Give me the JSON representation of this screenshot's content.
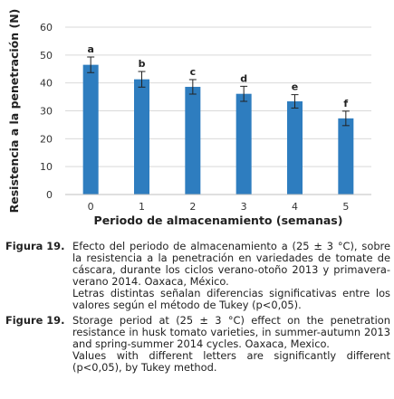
{
  "chart_data": {
    "type": "bar",
    "categories": [
      "0",
      "1",
      "2",
      "3",
      "4",
      "5"
    ],
    "values": [
      46.5,
      41.3,
      38.6,
      36.1,
      33.4,
      27.3
    ],
    "errors": [
      2.8,
      2.8,
      2.6,
      2.7,
      2.4,
      2.6
    ],
    "letters": [
      "a",
      "b",
      "c",
      "d",
      "e",
      "f"
    ],
    "xlabel": "Periodo de almacenamiento (semanas)",
    "ylabel": "Resistencia a la penetración (N)",
    "ylim": [
      0,
      60
    ],
    "yticks": [
      "0",
      "10",
      "20",
      "30",
      "40",
      "50",
      "60"
    ],
    "grid": true,
    "bar_color": "#2e7dbf"
  },
  "caption_es": {
    "label": "Figura 19.",
    "text": "Efecto del periodo de almacenamiento a (25 ± 3 °C), sobre la resistencia a la penetración en variedades de tomate de cáscara, durante los ciclos verano-otoño 2013 y primavera-verano 2014. Oaxaca, México.",
    "note": "Letras distintas señalan diferencias significativas entre los valores según el método de Tukey (p<0,05)."
  },
  "caption_en": {
    "label": "Figure 19.",
    "text": "Storage period at (25 ± 3 °C) effect on the penetration resistance in husk tomato varieties, in summer-autumn 2013 and spring-summer 2014 cycles. Oaxaca, Mexico.",
    "note": "Values with different letters are significantly different (p<0,05), by Tukey method."
  }
}
